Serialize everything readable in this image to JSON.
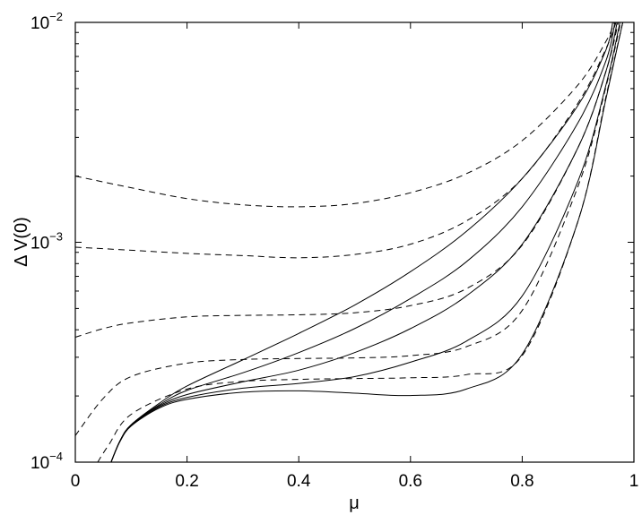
{
  "chart_data": {
    "type": "line",
    "title": "",
    "xlabel": "μ",
    "ylabel": "Δ V(0)",
    "xlim": [
      0,
      1
    ],
    "ylim": [
      0.0001,
      0.01
    ],
    "yscale": "log",
    "grid": false,
    "legend": "none",
    "x_ticks": [
      "0",
      "0.2",
      "0.4",
      "0.6",
      "0.8",
      "1"
    ],
    "y_ticks": [
      {
        "base": "10",
        "exp": "−4",
        "value": 0.0001
      },
      {
        "base": "10",
        "exp": "−3",
        "value": 0.001
      },
      {
        "base": "10",
        "exp": "−2",
        "value": 0.01
      }
    ],
    "series": [
      {
        "style": "solid",
        "points": [
          [
            0.064,
            0.0001
          ],
          [
            0.08,
            0.000125
          ],
          [
            0.1,
            0.000148
          ],
          [
            0.15,
            0.000185
          ],
          [
            0.2,
            0.000222
          ],
          [
            0.3,
            0.000292
          ],
          [
            0.4,
            0.000385
          ],
          [
            0.5,
            0.000518
          ],
          [
            0.6,
            0.000735
          ],
          [
            0.7,
            0.00112
          ],
          [
            0.8,
            0.00195
          ],
          [
            0.9,
            0.0042
          ],
          [
            0.95,
            0.0075
          ],
          [
            0.962,
            0.01
          ]
        ]
      },
      {
        "style": "solid",
        "points": [
          [
            0.064,
            0.0001
          ],
          [
            0.08,
            0.000125
          ],
          [
            0.1,
            0.000148
          ],
          [
            0.15,
            0.000182
          ],
          [
            0.2,
            0.000212
          ],
          [
            0.3,
            0.000255
          ],
          [
            0.4,
            0.000315
          ],
          [
            0.5,
            0.000405
          ],
          [
            0.6,
            0.000555
          ],
          [
            0.7,
            0.000815
          ],
          [
            0.8,
            0.00145
          ],
          [
            0.9,
            0.0035
          ],
          [
            0.95,
            0.0067
          ],
          [
            0.966,
            0.01
          ]
        ]
      },
      {
        "style": "solid",
        "points": [
          [
            0.064,
            0.0001
          ],
          [
            0.08,
            0.000125
          ],
          [
            0.1,
            0.000148
          ],
          [
            0.15,
            0.00018
          ],
          [
            0.2,
            0.000203
          ],
          [
            0.3,
            0.000232
          ],
          [
            0.4,
            0.000262
          ],
          [
            0.5,
            0.000315
          ],
          [
            0.6,
            0.000405
          ],
          [
            0.7,
            0.00057
          ],
          [
            0.8,
            0.00098
          ],
          [
            0.9,
            0.0027
          ],
          [
            0.95,
            0.006
          ],
          [
            0.97,
            0.01
          ]
        ]
      },
      {
        "style": "solid",
        "points": [
          [
            0.064,
            0.0001
          ],
          [
            0.08,
            0.000125
          ],
          [
            0.1,
            0.000147
          ],
          [
            0.15,
            0.000178
          ],
          [
            0.2,
            0.000197
          ],
          [
            0.3,
            0.000217
          ],
          [
            0.4,
            0.000228
          ],
          [
            0.5,
            0.000245
          ],
          [
            0.6,
            0.000285
          ],
          [
            0.7,
            0.000355
          ],
          [
            0.8,
            0.00057
          ],
          [
            0.9,
            0.0019
          ],
          [
            0.95,
            0.0052
          ],
          [
            0.975,
            0.01
          ]
        ]
      },
      {
        "style": "solid",
        "points": [
          [
            0.064,
            0.0001
          ],
          [
            0.08,
            0.000124
          ],
          [
            0.1,
            0.000146
          ],
          [
            0.15,
            0.000176
          ],
          [
            0.2,
            0.000193
          ],
          [
            0.3,
            0.000208
          ],
          [
            0.4,
            0.000211
          ],
          [
            0.5,
            0.000206
          ],
          [
            0.6,
            0.000201
          ],
          [
            0.7,
            0.000215
          ],
          [
            0.8,
            0.00031
          ],
          [
            0.9,
            0.00125
          ],
          [
            0.95,
            0.0045
          ],
          [
            0.98,
            0.01
          ]
        ]
      },
      {
        "style": "dashed",
        "points": [
          [
            0,
            0.002
          ],
          [
            0.1,
            0.00177
          ],
          [
            0.2,
            0.00158
          ],
          [
            0.3,
            0.00148
          ],
          [
            0.4,
            0.00145
          ],
          [
            0.5,
            0.0015
          ],
          [
            0.6,
            0.00168
          ],
          [
            0.7,
            0.00205
          ],
          [
            0.8,
            0.0029
          ],
          [
            0.9,
            0.0052
          ],
          [
            0.95,
            0.0082
          ],
          [
            0.965,
            0.01
          ]
        ]
      },
      {
        "style": "dashed",
        "points": [
          [
            0,
            0.00095
          ],
          [
            0.1,
            0.00092
          ],
          [
            0.2,
            0.00089
          ],
          [
            0.3,
            0.00087
          ],
          [
            0.4,
            0.00085
          ],
          [
            0.5,
            0.00088
          ],
          [
            0.6,
            0.00098
          ],
          [
            0.7,
            0.00125
          ],
          [
            0.8,
            0.00195
          ],
          [
            0.9,
            0.0043
          ],
          [
            0.95,
            0.0076
          ],
          [
            0.968,
            0.01
          ]
        ]
      },
      {
        "style": "dashed",
        "points": [
          [
            0,
            0.00037
          ],
          [
            0.05,
            0.000405
          ],
          [
            0.1,
            0.00043
          ],
          [
            0.2,
            0.000458
          ],
          [
            0.3,
            0.000465
          ],
          [
            0.4,
            0.000468
          ],
          [
            0.5,
            0.000478
          ],
          [
            0.6,
            0.000515
          ],
          [
            0.7,
            0.000615
          ],
          [
            0.8,
            0.00097
          ],
          [
            0.9,
            0.0027
          ],
          [
            0.95,
            0.006
          ],
          [
            0.972,
            0.01
          ]
        ]
      },
      {
        "style": "dashed",
        "points": [
          [
            0,
            0.000132
          ],
          [
            0.05,
            0.000195
          ],
          [
            0.1,
            0.000245
          ],
          [
            0.2,
            0.000282
          ],
          [
            0.3,
            0.000293
          ],
          [
            0.4,
            0.000296
          ],
          [
            0.5,
            0.000298
          ],
          [
            0.6,
            0.000305
          ],
          [
            0.7,
            0.000335
          ],
          [
            0.8,
            0.00049
          ],
          [
            0.9,
            0.0018
          ],
          [
            0.95,
            0.0051
          ],
          [
            0.976,
            0.01
          ]
        ]
      },
      {
        "style": "dashed",
        "points": [
          [
            0.04,
            0.0001
          ],
          [
            0.06,
            0.00012
          ],
          [
            0.1,
            0.000165
          ],
          [
            0.2,
            0.000215
          ],
          [
            0.3,
            0.000233
          ],
          [
            0.4,
            0.000238
          ],
          [
            0.5,
            0.00024
          ],
          [
            0.6,
            0.000242
          ],
          [
            0.7,
            0.00025
          ],
          [
            0.8,
            0.000305
          ],
          [
            0.9,
            0.00125
          ],
          [
            0.95,
            0.0046
          ],
          [
            0.98,
            0.01
          ]
        ]
      }
    ]
  }
}
